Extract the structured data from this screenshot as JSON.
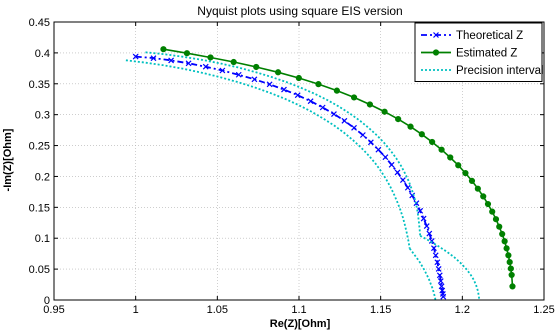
{
  "chart_data": {
    "type": "line",
    "title": "Nyquist plots using square EIS version",
    "xlabel": "Re(Z)[Ohm]",
    "ylabel": "-Im(Z)[Ohm]",
    "xlim": [
      0.95,
      1.25
    ],
    "ylim": [
      0,
      0.45
    ],
    "xticks": [
      0.95,
      1,
      1.05,
      1.1,
      1.15,
      1.2,
      1.25
    ],
    "xtick_labels": [
      "0.95",
      "1",
      "1.05",
      "1.1",
      "1.15",
      "1.2",
      "1.25"
    ],
    "yticks": [
      0,
      0.05,
      0.1,
      0.15,
      0.2,
      0.25,
      0.3,
      0.35,
      0.4,
      0.45
    ],
    "ytick_labels": [
      "0",
      "0.05",
      "0.1",
      "0.15",
      "0.2",
      "0.25",
      "0.3",
      "0.35",
      "0.4",
      "0.45"
    ],
    "grid": true,
    "legend_position": "top-right",
    "series": [
      {
        "name": "Theoretical Z",
        "color": "#0000ff",
        "style": "dash-dot",
        "marker": "x",
        "x": [
          1.0,
          1.0109,
          1.0217,
          1.0324,
          1.0429,
          1.0531,
          1.0631,
          1.0727,
          1.082,
          1.0908,
          1.0992,
          1.1071,
          1.1145,
          1.1214,
          1.1278,
          1.1337,
          1.1391,
          1.144,
          1.1486,
          1.1529,
          1.1567,
          1.1603,
          1.1636,
          1.1666,
          1.1693,
          1.1719,
          1.1742,
          1.1763,
          1.1782,
          1.1798,
          1.1813,
          1.1826,
          1.1837,
          1.1847,
          1.1855,
          1.1862,
          1.1868,
          1.1873,
          1.1877,
          1.1881,
          1.1883
        ],
        "y": [
          0.394,
          0.3915,
          0.3878,
          0.3832,
          0.3777,
          0.3715,
          0.3646,
          0.3572,
          0.3492,
          0.3406,
          0.3315,
          0.3218,
          0.3116,
          0.301,
          0.29,
          0.2787,
          0.2671,
          0.2553,
          0.2433,
          0.2311,
          0.2189,
          0.2065,
          0.1941,
          0.1817,
          0.1692,
          0.1567,
          0.1443,
          0.1319,
          0.1197,
          0.1075,
          0.0956,
          0.0838,
          0.0723,
          0.0611,
          0.0503,
          0.04,
          0.0306,
          0.0222,
          0.0152,
          0.0098,
          0.0053
        ]
      },
      {
        "name": "Estimated Z",
        "color": "#008000",
        "style": "solid",
        "marker": "o",
        "x": [
          1.017,
          1.0314,
          1.0458,
          1.06,
          1.0738,
          1.0872,
          1.0999,
          1.1119,
          1.1232,
          1.1337,
          1.1434,
          1.1524,
          1.1607,
          1.1683,
          1.1752,
          1.1815,
          1.1873,
          1.1926,
          1.1975,
          1.2019,
          1.2059,
          1.2095,
          1.2128,
          1.2157,
          1.2183,
          1.2206,
          1.2226,
          1.2244,
          1.2259,
          1.2271,
          1.2282,
          1.229,
          1.2297,
          1.2302,
          1.2307
        ],
        "y": [
          0.406,
          0.3995,
          0.3926,
          0.3852,
          0.3772,
          0.3686,
          0.3593,
          0.3494,
          0.3389,
          0.3279,
          0.3165,
          0.3048,
          0.2928,
          0.2806,
          0.2683,
          0.2558,
          0.2433,
          0.2307,
          0.2181,
          0.2054,
          0.1928,
          0.1802,
          0.1677,
          0.1553,
          0.143,
          0.1308,
          0.1187,
          0.1068,
          0.0951,
          0.0836,
          0.0723,
          0.0614,
          0.0508,
          0.0406,
          0.022
        ]
      },
      {
        "name": "Precision interval",
        "color": "#00c0c0",
        "style": "dotted",
        "x": [
          0.994,
          1.0058,
          1.0176,
          1.0292,
          1.0405,
          1.0515,
          1.0621,
          1.0723,
          1.082,
          1.0911,
          1.0996,
          1.1075,
          1.1147,
          1.1214,
          1.1275,
          1.133,
          1.138,
          1.1425,
          1.1465,
          1.15,
          1.1531,
          1.1558,
          1.1581,
          1.1602,
          1.162,
          1.1636,
          1.1649,
          1.166,
          1.167,
          1.1678
        ],
        "y": [
          0.388,
          0.3843,
          0.3797,
          0.3742,
          0.3679,
          0.3608,
          0.353,
          0.3446,
          0.3356,
          0.326,
          0.3158,
          0.3051,
          0.294,
          0.2826,
          0.2709,
          0.2589,
          0.2467,
          0.2344,
          0.2219,
          0.2093,
          0.1967,
          0.1841,
          0.1714,
          0.1587,
          0.1461,
          0.1335,
          0.1209,
          0.1083,
          0.0958,
          0.0833
        ]
      },
      {
        "name": "",
        "color": "#00c0c0",
        "style": "dotted",
        "x": [
          1.006,
          1.0176,
          1.0291,
          1.0404,
          1.0515,
          1.0623,
          1.0727,
          1.0827,
          1.0922,
          1.1011,
          1.1095,
          1.1173,
          1.1245,
          1.1311,
          1.1372,
          1.1427,
          1.1477,
          1.1521,
          1.156,
          1.1595,
          1.1625,
          1.165,
          1.1672,
          1.169,
          1.1705,
          1.1718,
          1.1727,
          1.1733,
          1.1738,
          1.1742
        ],
        "y": [
          0.401,
          0.3978,
          0.3937,
          0.3888,
          0.3831,
          0.3766,
          0.3694,
          0.3615,
          0.3529,
          0.3437,
          0.334,
          0.3237,
          0.313,
          0.3019,
          0.2904,
          0.2786,
          0.2666,
          0.2544,
          0.242,
          0.2296,
          0.2171,
          0.2045,
          0.1919,
          0.1793,
          0.1667,
          0.1541,
          0.1415,
          0.129,
          0.1165,
          0.104
        ]
      },
      {
        "name": "",
        "color": "#00c0c0",
        "style": "dotted",
        "x": [
          1.1678,
          1.1697,
          1.1716,
          1.1735,
          1.1752,
          1.1768,
          1.1782,
          1.1795,
          1.1806,
          1.1816,
          1.1824,
          1.183,
          1.1835,
          1.1838,
          1.184
        ],
        "y": [
          0.0833,
          0.0768,
          0.07,
          0.0629,
          0.0557,
          0.0484,
          0.0411,
          0.0338,
          0.0266,
          0.0196,
          0.0129,
          0.0066,
          0.0008,
          0.0,
          0.0
        ]
      },
      {
        "name": "",
        "color": "#00c0c0",
        "style": "dotted",
        "x": [
          1.1742,
          1.1799,
          1.1854,
          1.1905,
          1.195,
          1.1989,
          1.2022,
          1.2049,
          1.207,
          1.2085,
          1.2095,
          1.2101,
          1.2104,
          1.2106
        ],
        "y": [
          0.104,
          0.0956,
          0.087,
          0.0782,
          0.0692,
          0.0601,
          0.0509,
          0.0417,
          0.0325,
          0.0235,
          0.0148,
          0.0066,
          0.0,
          0.0
        ]
      }
    ]
  }
}
